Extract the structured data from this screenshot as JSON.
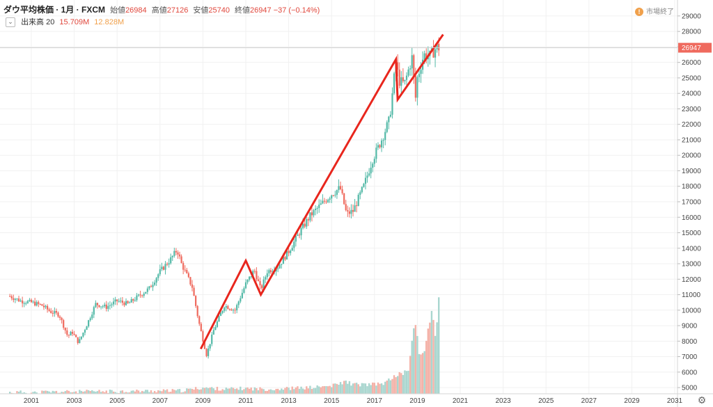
{
  "header": {
    "symbol": "ダウ平均株価 · 1月 · FXCM",
    "open_label": "始値",
    "open": "26984",
    "high_label": "高値",
    "high": "27126",
    "low_label": "安値",
    "low": "25740",
    "close_label": "終値",
    "close": "26947",
    "change": "−37 (−0.14%)"
  },
  "volume": {
    "label": "出来高 20",
    "value1": "15.709M",
    "value2": "12.828M"
  },
  "status": {
    "text": "市場終了",
    "icon": "!"
  },
  "settings_icon": "gear-icon",
  "colors": {
    "up": "#53b9a7",
    "down": "#ef6a5e",
    "trend": "#e8261d",
    "vol_up": "#a9d6cf",
    "vol_down": "#f4b2a8",
    "last_price": "#ef6a5e"
  },
  "chart_data": {
    "type": "candlestick",
    "x_ticks": [
      "2001",
      "2003",
      "2005",
      "2007",
      "2009",
      "2011",
      "2013",
      "2015",
      "2017",
      "2019",
      "2021",
      "2023",
      "2025",
      "2027",
      "2029",
      "2031"
    ],
    "y_ticks": [
      "29000",
      "28000",
      "27000",
      "26000",
      "25000",
      "24000",
      "23000",
      "22000",
      "21000",
      "20000",
      "19000",
      "18000",
      "17000",
      "16000",
      "15000",
      "14000",
      "13000",
      "12000",
      "11000",
      "10000",
      "9000",
      "8000",
      "7000",
      "6000",
      "5000"
    ],
    "ylim": [
      4600,
      29400
    ],
    "last_price": "26947",
    "price_path": [
      [
        2000.0,
        10900
      ],
      [
        2000.5,
        10600
      ],
      [
        2001.0,
        10500
      ],
      [
        2001.5,
        10300
      ],
      [
        2001.9,
        9900
      ],
      [
        2002.3,
        9700
      ],
      [
        2002.7,
        8300
      ],
      [
        2002.9,
        8600
      ],
      [
        2003.2,
        7900
      ],
      [
        2003.6,
        9100
      ],
      [
        2004.0,
        10400
      ],
      [
        2004.5,
        10200
      ],
      [
        2005.0,
        10600
      ],
      [
        2005.5,
        10400
      ],
      [
        2006.0,
        10900
      ],
      [
        2006.5,
        11400
      ],
      [
        2007.0,
        12500
      ],
      [
        2007.5,
        13300
      ],
      [
        2007.8,
        13900
      ],
      [
        2008.0,
        13000
      ],
      [
        2008.5,
        11500
      ],
      [
        2008.8,
        9300
      ],
      [
        2009.0,
        8100
      ],
      [
        2009.17,
        7100
      ],
      [
        2009.5,
        8700
      ],
      [
        2010.0,
        10300
      ],
      [
        2010.5,
        10000
      ],
      [
        2011.0,
        11700
      ],
      [
        2011.4,
        12600
      ],
      [
        2011.7,
        11300
      ],
      [
        2012.0,
        12500
      ],
      [
        2012.5,
        12800
      ],
      [
        2013.0,
        13800
      ],
      [
        2013.5,
        15000
      ],
      [
        2014.0,
        16100
      ],
      [
        2014.5,
        16800
      ],
      [
        2015.0,
        17500
      ],
      [
        2015.4,
        17900
      ],
      [
        2015.7,
        16200
      ],
      [
        2016.0,
        16400
      ],
      [
        2016.5,
        18000
      ],
      [
        2016.9,
        19700
      ],
      [
        2017.3,
        20900
      ],
      [
        2017.7,
        22300
      ],
      [
        2018.0,
        26000
      ],
      [
        2018.15,
        24800
      ],
      [
        2018.4,
        24600
      ],
      [
        2018.75,
        26300
      ],
      [
        2018.95,
        23200
      ],
      [
        2019.0,
        25000
      ],
      [
        2019.3,
        26500
      ],
      [
        2019.6,
        26400
      ],
      [
        2019.9,
        27000
      ],
      [
        2020.0,
        26947
      ]
    ],
    "volume_bars": [
      [
        2000.0,
        4700
      ],
      [
        2008.0,
        4800
      ],
      [
        2009.0,
        5000
      ],
      [
        2010.0,
        4900
      ],
      [
        2011.0,
        4950
      ],
      [
        2012.0,
        4900
      ],
      [
        2013.0,
        4950
      ],
      [
        2014.0,
        5000
      ],
      [
        2015.0,
        5100
      ],
      [
        2015.7,
        5400
      ],
      [
        2016.0,
        5200
      ],
      [
        2016.5,
        5200
      ],
      [
        2017.0,
        5200
      ],
      [
        2017.5,
        5300
      ],
      [
        2017.9,
        5700
      ],
      [
        2018.0,
        5800
      ],
      [
        2018.3,
        5900
      ],
      [
        2018.6,
        6200
      ],
      [
        2018.8,
        8600
      ],
      [
        2018.95,
        9000
      ],
      [
        2019.1,
        7000
      ],
      [
        2019.3,
        7300
      ],
      [
        2019.5,
        8600
      ],
      [
        2019.7,
        10200
      ],
      [
        2019.85,
        8100
      ],
      [
        2020.0,
        10800
      ]
    ],
    "trendline": [
      [
        2008.9,
        7500
      ],
      [
        2011.0,
        13200
      ],
      [
        2011.7,
        11000
      ],
      [
        2018.0,
        26200
      ],
      [
        2018.08,
        23600
      ],
      [
        2020.2,
        27800
      ]
    ]
  }
}
